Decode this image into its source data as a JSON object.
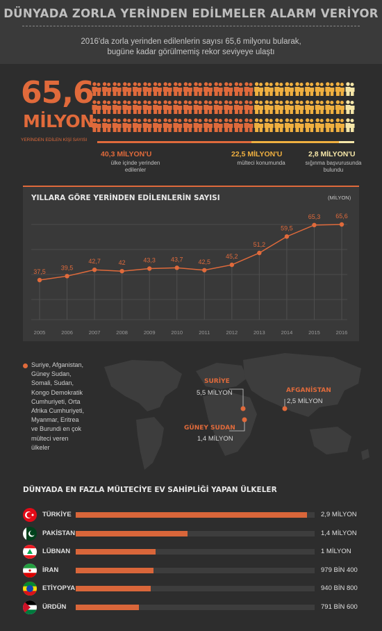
{
  "header": {
    "title": "DÜNYADA ZORLA YERİNDEN EDİLMELER ALARM VERİYOR",
    "subtitle_line1": "2016'da zorla yerinden edilenlerin sayısı 65,6 milyonu bularak,",
    "subtitle_line2": "bugüne kadar görülmemiş rekor seviyeye ulaştı"
  },
  "total": {
    "number": "65,6",
    "unit": "MİLYON",
    "caption": "YERİNDEN EDİLEN KİŞİ SAYISI"
  },
  "breakdown": [
    {
      "value": "40,3 MİLYON'U",
      "desc1": "ülke içinde yerinden",
      "desc2": "edilenler",
      "color": "#e06a3b",
      "share": 40.3
    },
    {
      "value": "22,5 MİLYON'U",
      "desc1": "mülteci konumunda",
      "desc2": "",
      "color": "#f0b040",
      "share": 22.5
    },
    {
      "value": "2,8 MİLYON'U",
      "desc1": "sığınma başvurusunda",
      "desc2": "bulundu",
      "color": "#f5e6a8",
      "share": 2.8
    }
  ],
  "chart_data": [
    {
      "type": "line",
      "title": "YILLARA GÖRE YERİNDEN EDİLENLERİN SAYISI",
      "unit": "(MİLYON)",
      "x": [
        "2005",
        "2006",
        "2007",
        "2008",
        "2009",
        "2010",
        "2011",
        "2012",
        "2013",
        "2014",
        "2015",
        "2016"
      ],
      "values": [
        37.5,
        39.5,
        42.7,
        42,
        43.3,
        43.7,
        42.5,
        45.2,
        51.2,
        59.5,
        65.3,
        65.6
      ],
      "labels": [
        "37,5",
        "39,5",
        "42,7",
        "42",
        "43,3",
        "43,7",
        "42,5",
        "45,2",
        "51,2",
        "59,5",
        "65,3",
        "65,6"
      ],
      "color": "#e06a3b"
    },
    {
      "type": "bar",
      "title": "DÜNYADA EN FAZLA MÜLTECİYE EV SAHİPLİĞİ YAPAN ÜLKELER",
      "categories": [
        "TÜRKİYE",
        "PAKİSTAN",
        "LÜBNAN",
        "İRAN",
        "ETİYOPYA",
        "ÜRDÜN"
      ],
      "values": [
        2900000,
        1400000,
        1000000,
        979400,
        940800,
        791600
      ],
      "labels": [
        "2,9 MİLYON",
        "1,4 MİLYON",
        "1 MİLYON",
        "979 BİN 400",
        "940 BİN 800",
        "791 BİN 600"
      ],
      "color": "#d9663a"
    }
  ],
  "map": {
    "text_lines": [
      "Suriye, Afganistan,",
      "Güney Sudan,",
      "Somali, Sudan,",
      "Kongo Demokratik",
      "Cumhuriyeti, Orta",
      "Afrika Cumhuriyeti,",
      "Myanmar, Eritrea",
      "ve Burundi en çok",
      "mülteci veren",
      "ülkeler"
    ],
    "callouts": [
      {
        "name": "SURİYE",
        "value": "5,5 MİLYON"
      },
      {
        "name": "AFGANİSTAN",
        "value": "2,5 MİLYON"
      },
      {
        "name": "GÜNEY SUDAN",
        "value": "1,4 MİLYON"
      }
    ]
  }
}
